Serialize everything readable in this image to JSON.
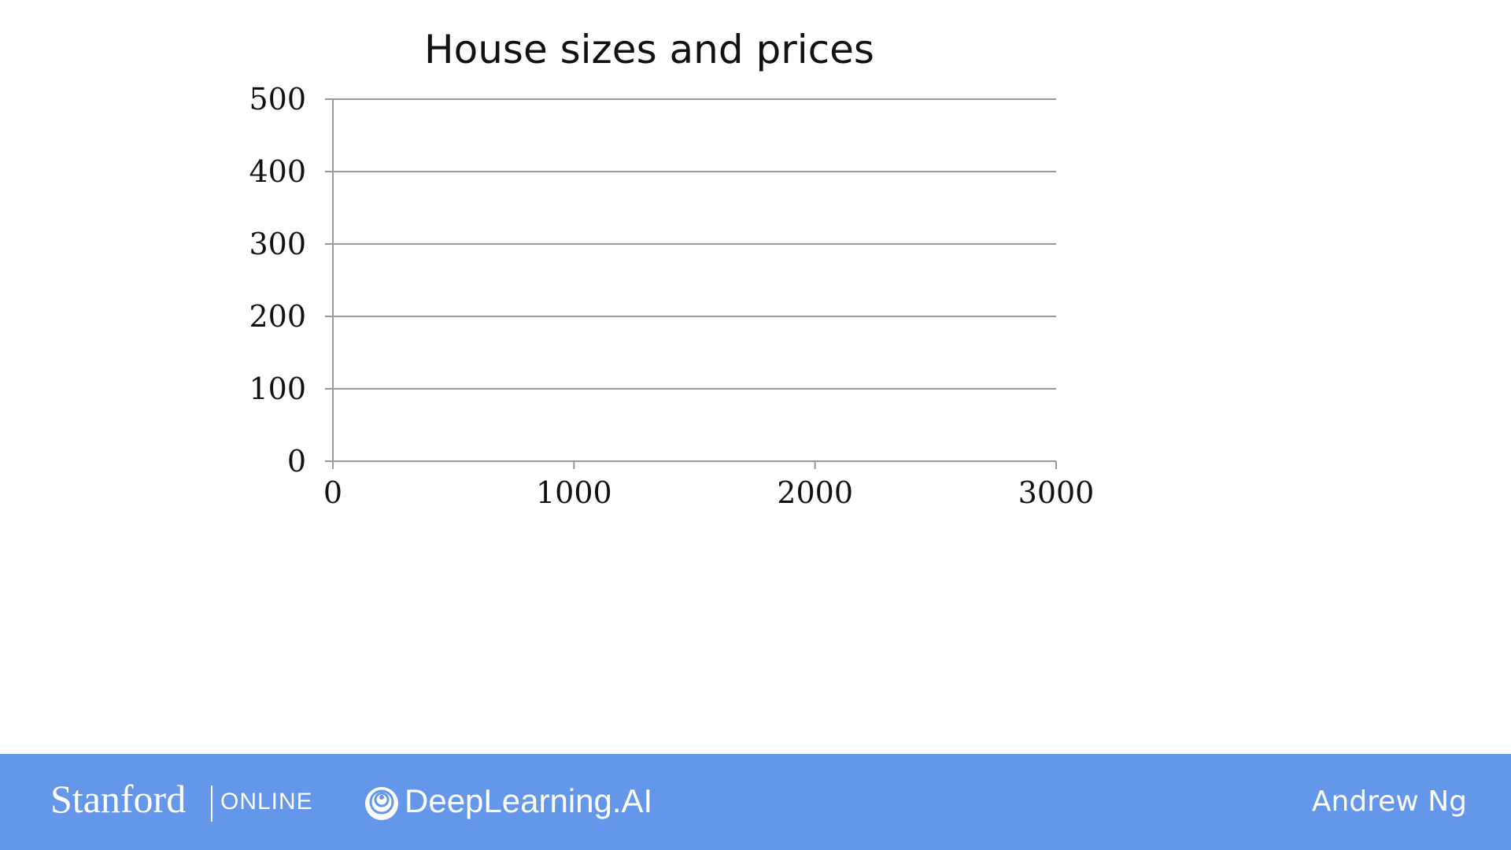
{
  "chart_data": {
    "type": "scatter",
    "title": "House sizes and prices",
    "xlabel": "",
    "ylabel": "",
    "xlim": [
      0,
      3000
    ],
    "ylim": [
      0,
      500
    ],
    "x_ticks": [
      "0",
      "1000",
      "2000",
      "3000"
    ],
    "y_ticks": [
      "0",
      "100",
      "200",
      "300",
      "400",
      "500"
    ],
    "grid": true,
    "points": []
  },
  "footer": {
    "stanford": "Stanford",
    "online": "ONLINE",
    "deeplearning": "DeepLearning.AI",
    "presenter": "Andrew Ng",
    "background_color": "#6497ea",
    "logo_icon": "deeplearning-ai-logo-icon"
  }
}
